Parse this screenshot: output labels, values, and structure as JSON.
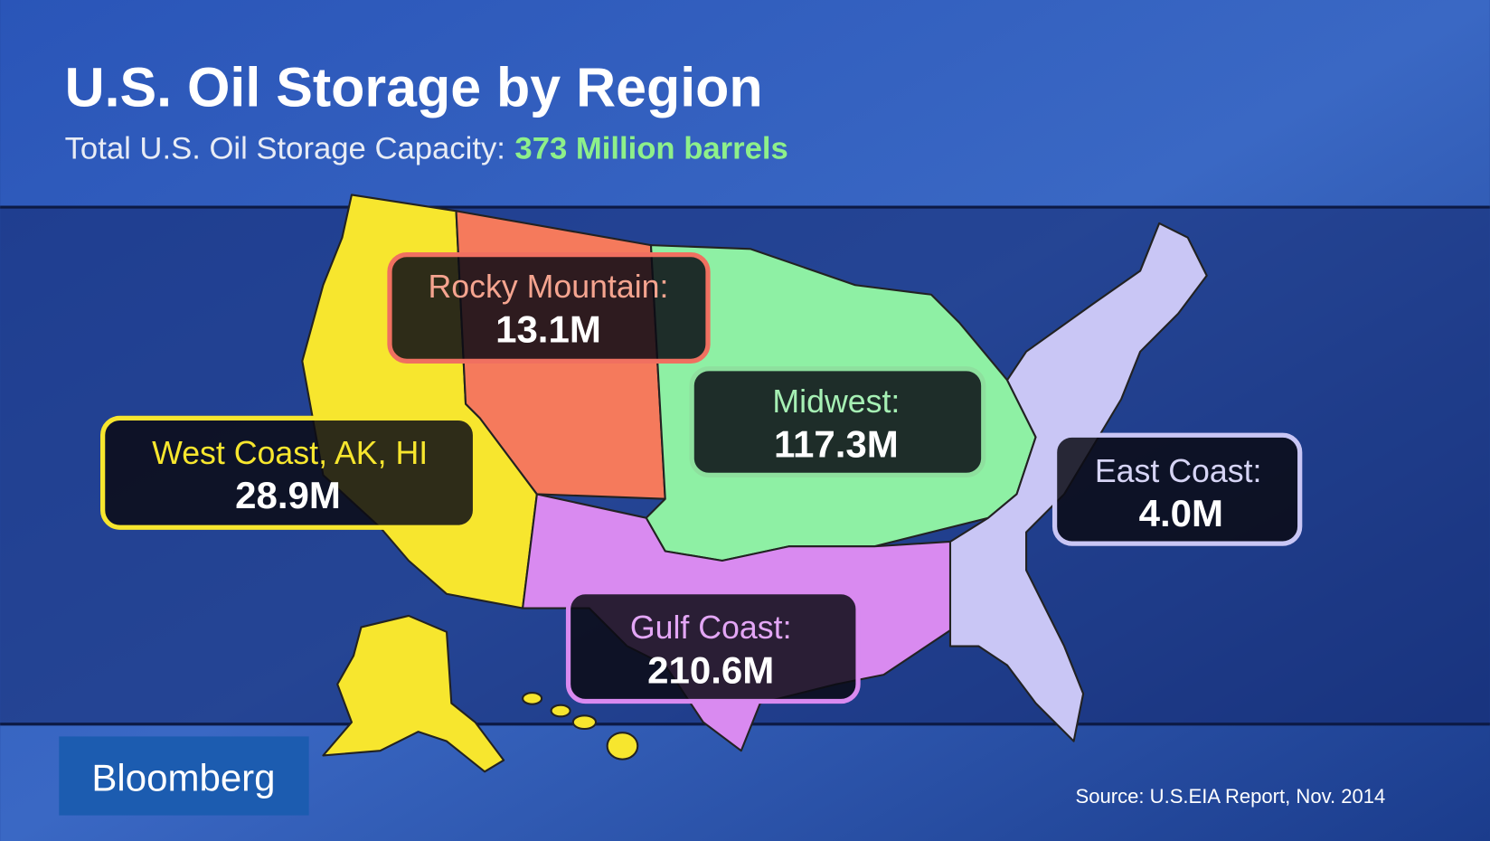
{
  "header": {
    "title": "U.S. Oil Storage by Region",
    "subtitle": "Total U.S. Oil Storage Capacity:",
    "subtitle_highlight": "373 Million barrels"
  },
  "regions": [
    {
      "name": "Rocky Mountain:",
      "value": "13.1M"
    },
    {
      "name": "Midwest:",
      "value": "117.3M"
    },
    {
      "name": "West Coast, AK, HI",
      "value": "28.9M"
    },
    {
      "name": "East Coast:",
      "value": "4.0M"
    },
    {
      "name": "Gulf Coast:",
      "value": "210.6M"
    }
  ],
  "logo": "Bloomberg",
  "source": "Source: U.S.EIA Report, Nov. 2014"
}
